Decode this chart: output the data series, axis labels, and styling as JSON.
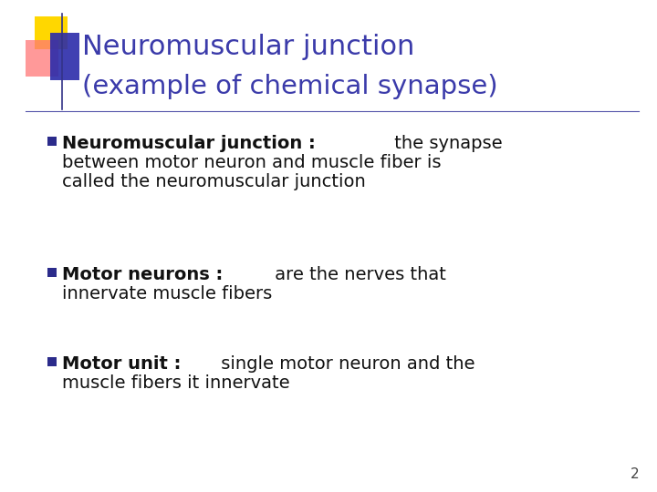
{
  "title_line1": "Neuromuscular junction",
  "title_line2": "(example of chemical synapse)",
  "title_color": "#3B3BAA",
  "bg_color": "#FFFFFF",
  "separator_color": "#5555AA",
  "bullet_color": "#2B2B8B",
  "page_number": "2",
  "square_yellow": "#FFD700",
  "square_red": "#FF7777",
  "square_blue": "#2B2BAA",
  "line_color": "#333388",
  "bullet1_bold": "Neuromuscular junction :",
  "bullet1_rest1": " the synapse",
  "bullet1_rest2": "between motor neuron and muscle fiber is",
  "bullet1_rest3": "called the neuromuscular junction",
  "bullet2_bold": "Motor neurons :",
  "bullet2_rest1": " are the nerves that",
  "bullet2_rest2": "innervate muscle fibers",
  "bullet3_bold": "Motor unit :",
  "bullet3_rest1": " single motor neuron and the",
  "bullet3_rest2": "muscle fibers it innervate",
  "title_fontsize": 22,
  "bullet_fontsize": 14,
  "text_color": "#111111"
}
